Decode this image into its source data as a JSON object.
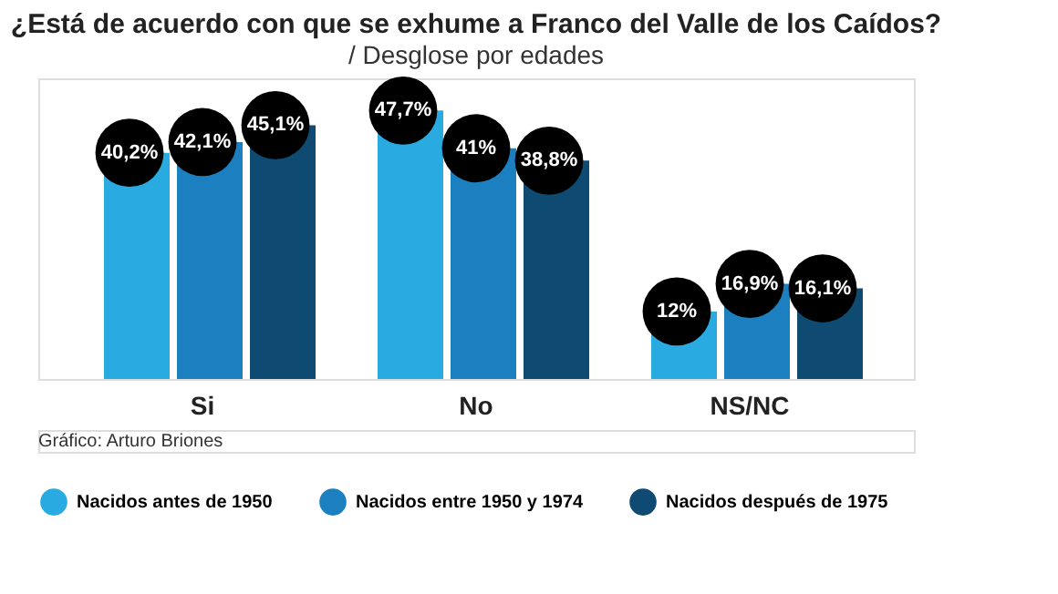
{
  "chart_data": {
    "type": "bar",
    "title": "¿Está de acuerdo con que se exhume a Franco del Valle de los Caídos?",
    "subtitle": "/ Desglose por edades",
    "categories": [
      "Si",
      "No",
      "NS/NC"
    ],
    "series": [
      {
        "name": "Nacidos antes de 1950",
        "color": "#29abe2",
        "values": [
          40.2,
          47.7,
          12
        ],
        "value_labels": [
          "40,2%",
          "47,7%",
          "12%"
        ]
      },
      {
        "name": "Nacidos entre 1950 y 1974",
        "color": "#1b7fc0",
        "values": [
          42.1,
          41,
          16.9
        ],
        "value_labels": [
          "42,1%",
          "41%",
          "16,9%"
        ]
      },
      {
        "name": "Nacidos después de 1975",
        "color": "#0f4a72",
        "values": [
          45.1,
          38.8,
          16.1
        ],
        "value_labels": [
          "45,1%",
          "38,8%",
          "16,1%"
        ]
      }
    ],
    "legend": "bottom",
    "grid": false,
    "tick_labels": "x",
    "annotations": [
      "Gráfico: Arturo Briones"
    ]
  }
}
